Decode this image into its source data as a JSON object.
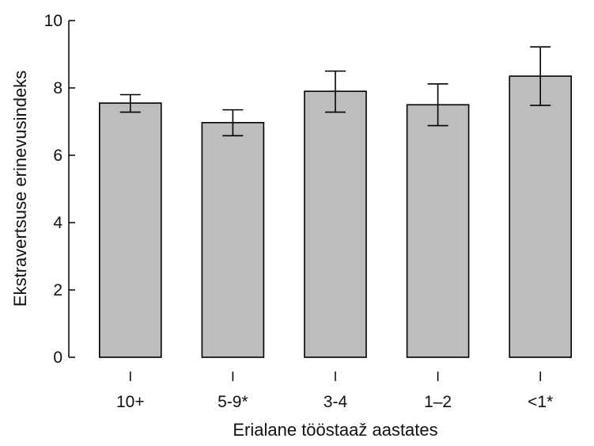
{
  "chart_data": {
    "type": "bar",
    "title": "",
    "xlabel": "Erialane tööstaaž aastates",
    "ylabel": "Ekstravertsuse erinevusindeks",
    "categories": [
      "10+",
      "5-9*",
      "3-4",
      "1–2",
      "<1*"
    ],
    "values": [
      7.55,
      6.97,
      7.9,
      7.5,
      8.35
    ],
    "error_low": [
      7.28,
      6.58,
      7.28,
      6.88,
      7.48
    ],
    "error_high": [
      7.8,
      7.35,
      8.5,
      8.12,
      9.22
    ],
    "ylim": [
      0,
      10
    ],
    "yticks": [
      0,
      2,
      4,
      6,
      8,
      10
    ],
    "grid": false,
    "bar_color": "#bdbdbd",
    "edge_color": "#000000"
  }
}
